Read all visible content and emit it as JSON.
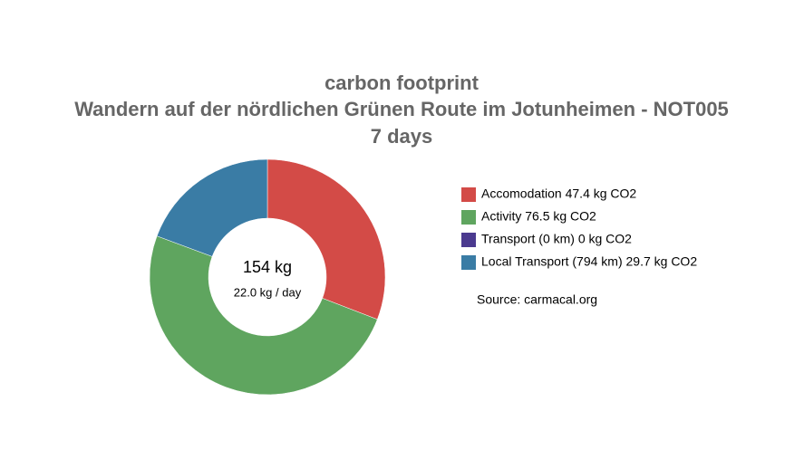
{
  "chart_data": {
    "type": "pie",
    "donut": true,
    "title": "carbon footprint",
    "subtitle": "Wandern auf der nördlichen Grünen Route im Jotunheimen - NOT005",
    "duration": "7 days",
    "categories": [
      "Accomodation 47.4 kg CO2",
      "Activity 76.5 kg CO2",
      "Transport (0 km) 0 kg CO2",
      "Local Transport (794 km) 29.7 kg CO2"
    ],
    "values": [
      47.4,
      76.5,
      0,
      29.7
    ],
    "colors": [
      "#d34b47",
      "#5fa55f",
      "#4b3a8f",
      "#3a7ca5"
    ],
    "center_total": "154 kg",
    "center_per_day": "22.0 kg / day",
    "source": "Source: carmacal.org",
    "legend": "right"
  }
}
